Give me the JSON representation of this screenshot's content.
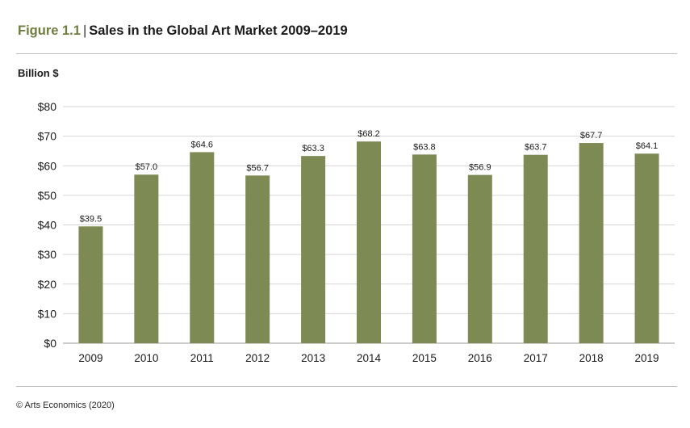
{
  "figure": {
    "label": "Figure 1.1",
    "separator": "|",
    "title": "Sales in the Global Art Market 2009–2019"
  },
  "unit_label": "Billion $",
  "source": "© Arts Economics (2020)",
  "colors": {
    "bar": "#7d8a53",
    "accent": "#6f7d3e",
    "grid": "#d6d6d6"
  },
  "chart_data": {
    "type": "bar",
    "title": "Sales in the Global Art Market 2009–2019",
    "ylabel": "Billion $",
    "xlabel": "",
    "categories": [
      "2009",
      "2010",
      "2011",
      "2012",
      "2013",
      "2014",
      "2015",
      "2016",
      "2017",
      "2018",
      "2019"
    ],
    "values": [
      39.5,
      57.0,
      64.6,
      56.7,
      63.3,
      68.2,
      63.8,
      56.9,
      63.7,
      67.7,
      64.1
    ],
    "data_labels": [
      "$39.5",
      "$57.0",
      "$64.6",
      "$56.7",
      "$63.3",
      "$68.2",
      "$63.8",
      "$56.9",
      "$63.7",
      "$67.7",
      "$64.1"
    ],
    "ylim": [
      0,
      80
    ],
    "yticks": [
      0,
      10,
      20,
      30,
      40,
      50,
      60,
      70,
      80
    ],
    "ytick_labels": [
      "$0",
      "$10",
      "$20",
      "$30",
      "$40",
      "$50",
      "$60",
      "$70",
      "$80"
    ],
    "grid": true,
    "legend": "none"
  }
}
